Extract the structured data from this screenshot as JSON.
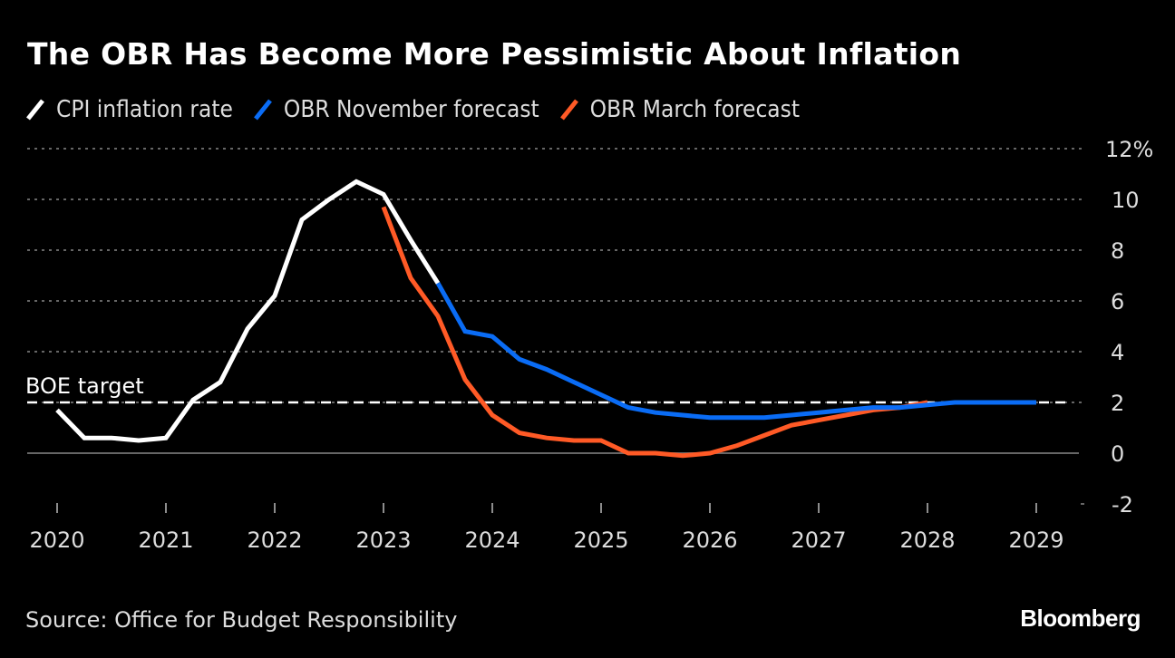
{
  "title": "The OBR Has Become More Pessimistic About Inflation",
  "legend": [
    {
      "label": "CPI inflation rate",
      "color": "#ffffff"
    },
    {
      "label": "OBR November forecast",
      "color": "#0a6cf5"
    },
    {
      "label": "OBR March forecast",
      "color": "#ff5a26"
    }
  ],
  "footer": {
    "source": "Source: Office for Budget Responsibility",
    "logo": "Bloomberg"
  },
  "chart_data": {
    "type": "line",
    "title": "The OBR Has Become More Pessimistic About Inflation",
    "xlabel": "",
    "ylabel": "",
    "x_unit": "quarter",
    "xlim": [
      2020.0,
      2029.3
    ],
    "ylim": [
      -2,
      12
    ],
    "y_ticks": [
      -2,
      0,
      2,
      4,
      6,
      8,
      10,
      12
    ],
    "y_tick_labels": [
      "-2",
      "0",
      "2",
      "4",
      "6",
      "8",
      "10",
      "12%"
    ],
    "x_ticks": [
      2020,
      2021,
      2022,
      2023,
      2024,
      2025,
      2026,
      2027,
      2028,
      2029
    ],
    "x_tick_labels": [
      "2020",
      "2021",
      "2022",
      "2023",
      "2024",
      "2025",
      "2026",
      "2027",
      "2028",
      "2029"
    ],
    "grid": true,
    "legend_position": "top-left",
    "reference_line": {
      "label": "BOE target",
      "value": 2
    },
    "series": [
      {
        "name": "CPI inflation rate",
        "color": "#ffffff",
        "x": [
          2020.0,
          2020.25,
          2020.5,
          2020.75,
          2021.0,
          2021.25,
          2021.5,
          2021.75,
          2022.0,
          2022.25,
          2022.5,
          2022.75,
          2023.0,
          2023.25,
          2023.5
        ],
        "values": [
          1.7,
          0.6,
          0.6,
          0.5,
          0.6,
          2.1,
          2.8,
          4.9,
          6.2,
          9.2,
          10.0,
          10.7,
          10.2,
          8.4,
          6.7
        ]
      },
      {
        "name": "OBR November forecast",
        "color": "#0a6cf5",
        "x": [
          2023.5,
          2023.75,
          2024.0,
          2024.25,
          2024.5,
          2024.75,
          2025.0,
          2025.25,
          2025.5,
          2025.75,
          2026.0,
          2026.25,
          2026.5,
          2026.75,
          2027.0,
          2027.25,
          2027.5,
          2027.75,
          2028.0,
          2028.25,
          2028.5,
          2028.75,
          2029.0
        ],
        "values": [
          6.7,
          4.8,
          4.6,
          3.7,
          3.3,
          2.8,
          2.3,
          1.8,
          1.6,
          1.5,
          1.4,
          1.4,
          1.4,
          1.5,
          1.6,
          1.7,
          1.8,
          1.8,
          1.9,
          2.0,
          2.0,
          2.0,
          2.0
        ]
      },
      {
        "name": "OBR March forecast",
        "color": "#ff5a26",
        "x": [
          2023.0,
          2023.25,
          2023.5,
          2023.75,
          2024.0,
          2024.25,
          2024.5,
          2024.75,
          2025.0,
          2025.25,
          2025.5,
          2025.75,
          2026.0,
          2026.25,
          2026.5,
          2026.75,
          2027.0,
          2027.25,
          2027.5,
          2027.75,
          2028.0
        ],
        "values": [
          9.7,
          6.9,
          5.4,
          2.9,
          1.5,
          0.8,
          0.6,
          0.5,
          0.5,
          0.0,
          0.0,
          -0.1,
          0.0,
          0.3,
          0.7,
          1.1,
          1.3,
          1.5,
          1.7,
          1.8,
          2.0
        ]
      }
    ]
  }
}
